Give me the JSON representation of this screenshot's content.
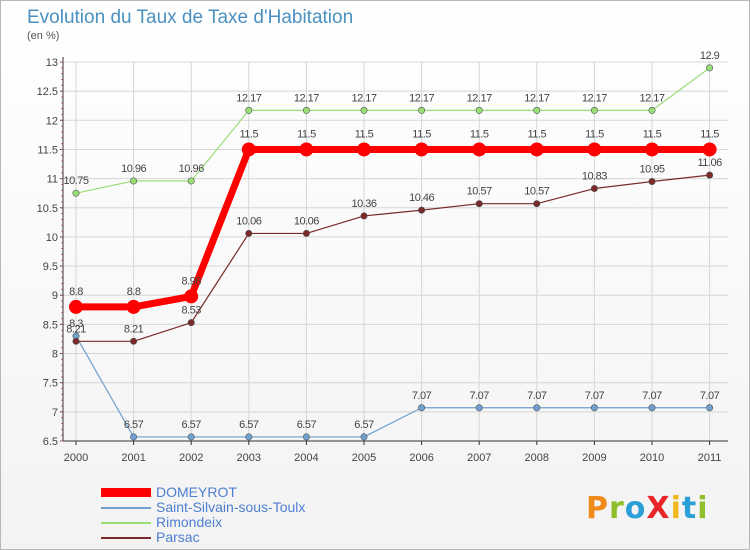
{
  "header": {
    "title": "Evolution du Taux de Taxe d'Habitation",
    "subtitle": "(en %)"
  },
  "logo": {
    "text": "ProXiti",
    "colors": [
      "#f08a1c",
      "#8fbf2a",
      "#2a9fd8",
      "#e8262a",
      "#f0b81c",
      "#2a9fd8",
      "#8fbf2a"
    ]
  },
  "chart_data": {
    "type": "line",
    "title": "Evolution du Taux de Taxe d'Habitation",
    "ylabel": "(en %)",
    "xlabel": "",
    "x": [
      "2000",
      "2001",
      "2002",
      "2003",
      "2004",
      "2005",
      "2006",
      "2007",
      "2008",
      "2009",
      "2010",
      "2011"
    ],
    "ylim": [
      6.5,
      13
    ],
    "yticks": [
      "6.5",
      "7",
      "7.5",
      "8",
      "8.5",
      "9",
      "9.5",
      "10",
      "10.5",
      "11",
      "11.5",
      "12",
      "12.5",
      "13"
    ],
    "grid": true,
    "legend_position": "bottom-left",
    "series": [
      {
        "name": "DOMEYROT",
        "color": "#ff0000",
        "bold": true,
        "values": [
          8.8,
          8.8,
          8.98,
          11.5,
          11.5,
          11.5,
          11.5,
          11.5,
          11.5,
          11.5,
          11.5,
          11.5
        ],
        "labels": [
          "8.8",
          "8.8",
          "8.98",
          "11.5",
          "11.5",
          "11.5",
          "11.5",
          "11.5",
          "11.5",
          "11.5",
          "11.5",
          "11.5"
        ]
      },
      {
        "name": "Saint-Silvain-sous-Toulx",
        "color": "#6fa0d0",
        "values": [
          8.3,
          6.57,
          6.57,
          6.57,
          6.57,
          6.57,
          7.07,
          7.07,
          7.07,
          7.07,
          7.07,
          7.07
        ],
        "labels": [
          "8.3",
          "6.57",
          "6.57",
          "6.57",
          "6.57",
          "6.57",
          "7.07",
          "7.07",
          "7.07",
          "7.07",
          "7.07",
          "7.07"
        ]
      },
      {
        "name": "Rimondeix",
        "color": "#99dd77",
        "values": [
          10.75,
          10.96,
          10.96,
          12.17,
          12.17,
          12.17,
          12.17,
          12.17,
          12.17,
          12.17,
          12.17,
          12.9
        ],
        "labels": [
          "10.75",
          "10.96",
          "10.96",
          "12.17",
          "12.17",
          "12.17",
          "12.17",
          "12.17",
          "12.17",
          "12.17",
          "12.17",
          "12.9"
        ]
      },
      {
        "name": "Parsac",
        "color": "#7a2a2a",
        "values": [
          8.21,
          8.21,
          8.53,
          10.06,
          10.06,
          10.36,
          10.46,
          10.57,
          10.57,
          10.83,
          10.95,
          11.06
        ],
        "labels": [
          "8.21",
          "8.21",
          "8.53",
          "10.06",
          "10.06",
          "10.36",
          "10.46",
          "10.57",
          "10.57",
          "10.83",
          "10.95",
          "11.06"
        ]
      }
    ]
  }
}
